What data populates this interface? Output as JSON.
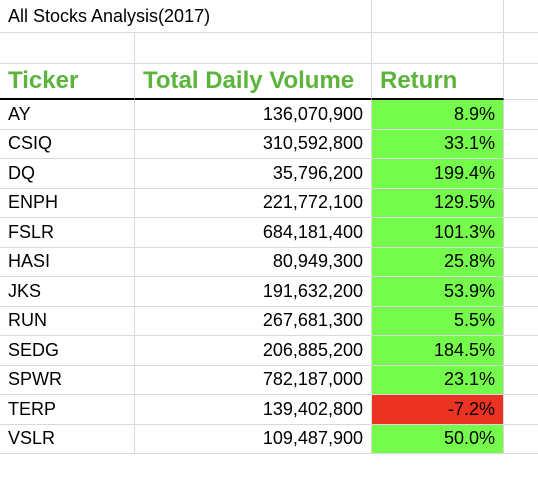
{
  "sheet": {
    "title": "All Stocks Analysis(2017)",
    "headers": {
      "ticker": "Ticker",
      "volume": "Total Daily Volume",
      "return": "Return"
    },
    "status_colors": {
      "positive": "#75fb4c",
      "negative": "#ea3323",
      "header_text": "#5cb43c"
    },
    "rows": [
      {
        "ticker": "AY",
        "volume": "136,070,900",
        "return": "8.9%",
        "status": "positive"
      },
      {
        "ticker": "CSIQ",
        "volume": "310,592,800",
        "return": "33.1%",
        "status": "positive"
      },
      {
        "ticker": "DQ",
        "volume": "35,796,200",
        "return": "199.4%",
        "status": "positive"
      },
      {
        "ticker": "ENPH",
        "volume": "221,772,100",
        "return": "129.5%",
        "status": "positive"
      },
      {
        "ticker": "FSLR",
        "volume": "684,181,400",
        "return": "101.3%",
        "status": "positive"
      },
      {
        "ticker": "HASI",
        "volume": "80,949,300",
        "return": "25.8%",
        "status": "positive"
      },
      {
        "ticker": "JKS",
        "volume": "191,632,200",
        "return": "53.9%",
        "status": "positive"
      },
      {
        "ticker": "RUN",
        "volume": "267,681,300",
        "return": "5.5%",
        "status": "positive"
      },
      {
        "ticker": "SEDG",
        "volume": "206,885,200",
        "return": "184.5%",
        "status": "positive"
      },
      {
        "ticker": "SPWR",
        "volume": "782,187,000",
        "return": "23.1%",
        "status": "positive"
      },
      {
        "ticker": "TERP",
        "volume": "139,402,800",
        "return": "-7.2%",
        "status": "negative"
      },
      {
        "ticker": "VSLR",
        "volume": "109,487,900",
        "return": "50.0%",
        "status": "positive"
      }
    ]
  }
}
